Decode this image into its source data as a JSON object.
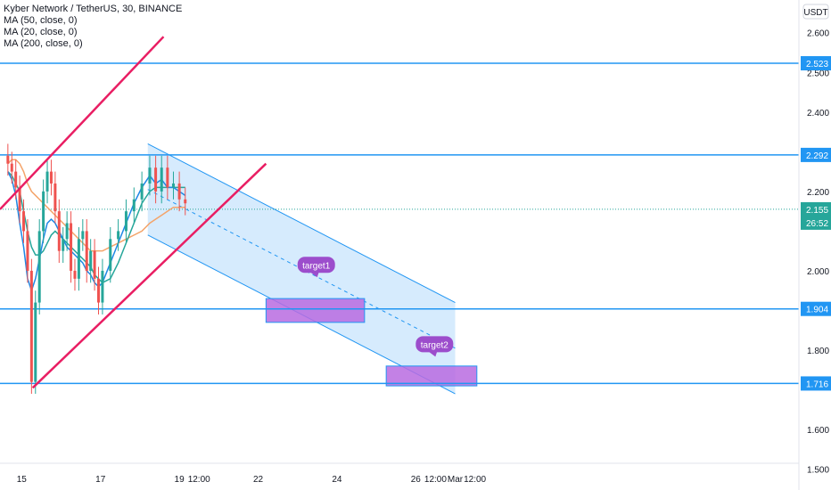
{
  "legend": {
    "title": "Kyber Network / TetherUS, 30, BINANCE",
    "ma50": "MA (50, close, 0)",
    "ma20": "MA (20, close, 0)",
    "ma200": "MA (200, close, 0)"
  },
  "chart_data": {
    "type": "candlestick",
    "symbol": "Kyber Network / TetherUS",
    "unit_label": "USDT",
    "ylim": [
      1.47,
      2.66
    ],
    "y_ticks": [
      {
        "v": 2.6,
        "label": "2.600"
      },
      {
        "v": 2.5,
        "label": "2.500"
      },
      {
        "v": 2.4,
        "label": "2.400"
      },
      {
        "v": 2.2,
        "label": "2.200"
      },
      {
        "v": 2.0,
        "label": "2.000"
      },
      {
        "v": 1.8,
        "label": "1.800"
      },
      {
        "v": 1.6,
        "label": "1.600"
      },
      {
        "v": 1.5,
        "label": "1.500"
      }
    ],
    "x_ticks": [
      {
        "t": 15,
        "label": "15"
      },
      {
        "t": 17,
        "label": "17"
      },
      {
        "t": 19,
        "label": "19"
      },
      {
        "t": 19.5,
        "label": "12:00"
      },
      {
        "t": 21,
        "label": "22"
      },
      {
        "t": 23,
        "label": "24"
      },
      {
        "t": 25,
        "label": "26"
      },
      {
        "t": 25.5,
        "label": "12:00"
      },
      {
        "t": 26,
        "label": "Mar"
      },
      {
        "t": 26.5,
        "label": "12:00"
      }
    ],
    "horizontal_levels": [
      {
        "v": 2.523,
        "label": "2.523"
      },
      {
        "v": 2.292,
        "label": "2.292"
      },
      {
        "v": 1.904,
        "label": "1.904"
      },
      {
        "v": 1.716,
        "label": "1.716"
      }
    ],
    "current_price": {
      "v": 2.155,
      "label": "2.155",
      "countdown": "26:52"
    },
    "candles_close": [
      2.27,
      2.25,
      2.21,
      2.15,
      2.1,
      2.0,
      1.72,
      1.92,
      2.1,
      2.2,
      2.25,
      2.22,
      2.15,
      2.05,
      2.08,
      2.12,
      2.0,
      1.98,
      2.08,
      2.1,
      2.0,
      2.05,
      1.98,
      1.92,
      2.0,
      2.08,
      2.1,
      2.15,
      2.18,
      2.22,
      2.26,
      2.2,
      2.26,
      2.21,
      2.22,
      2.18,
      2.17
    ],
    "candles_t": [
      14.65,
      14.75,
      14.85,
      14.95,
      15.05,
      15.15,
      15.25,
      15.35,
      15.45,
      15.55,
      15.65,
      15.75,
      15.85,
      15.95,
      16.05,
      16.15,
      16.25,
      16.35,
      16.45,
      16.55,
      16.65,
      16.75,
      16.85,
      16.95,
      17.05,
      17.25,
      17.45,
      17.65,
      17.85,
      18.05,
      18.25,
      18.4,
      18.55,
      18.7,
      18.85,
      19.0,
      19.15
    ],
    "ma20": [
      2.25,
      2.23,
      2.19,
      2.12,
      2.06,
      1.98,
      1.95,
      1.98,
      2.03,
      2.08,
      2.12,
      2.13,
      2.12,
      2.1,
      2.08,
      2.06,
      2.05,
      2.04,
      2.03,
      2.02,
      2.0,
      1.99,
      1.97,
      1.96,
      1.97,
      2.02,
      2.07,
      2.12,
      2.17,
      2.21,
      2.24,
      2.22,
      2.23,
      2.21,
      2.21,
      2.2,
      2.19
    ],
    "ma50": [
      2.25,
      2.24,
      2.22,
      2.2,
      2.15,
      2.1,
      2.06,
      2.04,
      2.04,
      2.05,
      2.07,
      2.09,
      2.1,
      2.09,
      2.08,
      2.07,
      2.06,
      2.05,
      2.04,
      2.03,
      2.02,
      2.01,
      1.99,
      1.98,
      1.97,
      1.98,
      2.02,
      2.07,
      2.12,
      2.17,
      2.2,
      2.21,
      2.21,
      2.21,
      2.21,
      2.21,
      2.21
    ],
    "ma200": [
      2.27,
      2.28,
      2.28,
      2.27,
      2.25,
      2.22,
      2.2,
      2.19,
      2.18,
      2.17,
      2.16,
      2.15,
      2.14,
      2.13,
      2.12,
      2.11,
      2.1,
      2.09,
      2.08,
      2.07,
      2.06,
      2.05,
      2.05,
      2.05,
      2.05,
      2.06,
      2.07,
      2.08,
      2.09,
      2.1,
      2.12,
      2.13,
      2.14,
      2.15,
      2.16,
      2.16,
      2.16
    ],
    "channel": {
      "upper_start": [
        18.2,
        2.32
      ],
      "upper_end": [
        26.0,
        1.92
      ],
      "lower_start": [
        18.2,
        2.09
      ],
      "lower_end": [
        26.0,
        1.69
      ]
    },
    "annotations": [
      {
        "text": "target1",
        "box_from": 1.87,
        "box_to": 1.93
      },
      {
        "text": "target2",
        "box_from": 1.71,
        "box_to": 1.76
      }
    ]
  },
  "colors": {
    "level_line": "#2196f3",
    "trend_line": "#e91e63",
    "channel_fill": "#bbdefb",
    "target_box": "#b96be0",
    "note_bg": "#9c4dcc",
    "ma20": "#1e88e5",
    "ma50": "#26a69a",
    "ma200": "#f4a46a",
    "up": "#26a69a",
    "down": "#ef5350"
  }
}
